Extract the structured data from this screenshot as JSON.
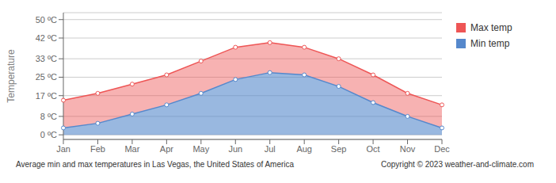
{
  "chart_data": {
    "type": "area",
    "title": "Average min and max temperatures in Las Vegas, the United States of America",
    "annotations": [
      "Copyright © 2023  weather-and-climate.com"
    ],
    "y_label": "Temperature",
    "categories": [
      "Jan",
      "Feb",
      "Mar",
      "Apr",
      "May",
      "Jun",
      "Jul",
      "Aug",
      "Sep",
      "Oct",
      "Nov",
      "Dec"
    ],
    "series": [
      {
        "name": "Max temp",
        "color": "#ee5555",
        "values": [
          15,
          18,
          22,
          26,
          32,
          38,
          40,
          38,
          33,
          26,
          18,
          13
        ]
      },
      {
        "name": "Min temp",
        "color": "#5588cc",
        "values": [
          3,
          5,
          9,
          13,
          18,
          24,
          27,
          26,
          21,
          14,
          8,
          3
        ]
      }
    ],
    "ylim": [
      -2,
      53
    ],
    "yticks": [
      {
        "value": 0,
        "label": "0 ºC"
      },
      {
        "value": 8,
        "label": "8 ºC"
      },
      {
        "value": 17,
        "label": "17 ºC"
      },
      {
        "value": 25,
        "label": "25 ºC"
      },
      {
        "value": 33,
        "label": "33 ºC"
      },
      {
        "value": 42,
        "label": "42 ºC"
      },
      {
        "value": 50,
        "label": "50 ºC"
      }
    ],
    "grid": true,
    "legend": "right"
  }
}
